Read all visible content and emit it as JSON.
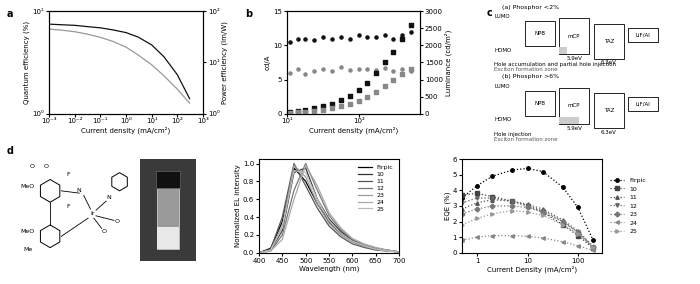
{
  "panel_labels": [
    "a",
    "b",
    "c",
    "d"
  ],
  "chart_data": [
    {
      "type": "line",
      "xlabel": "Current density (mA/cm²)",
      "ylabel": "Quantum efficiency (%)",
      "y2label": "Power efficiency (lm/W)",
      "log": true,
      "x": [
        0.001,
        0.003,
        0.01,
        0.03,
        0.1,
        0.3,
        1,
        3,
        10,
        30,
        100,
        300
      ],
      "series": [
        {
          "color": "#111111",
          "line_style": "solid",
          "values": [
            7.5,
            7.4,
            7.3,
            7.1,
            6.9,
            6.6,
            6.2,
            5.6,
            4.7,
            3.6,
            2.4,
            1.4
          ]
        },
        {
          "color": "#999999",
          "line_style": "solid",
          "axis": "y2",
          "values": [
            45,
            43,
            40,
            36,
            31,
            26,
            20,
            14,
            9,
            5.5,
            3,
            1.6
          ]
        }
      ],
      "xlim": [
        0.001,
        1000
      ],
      "xticks": [
        {
          "value": 0.001,
          "label": "10⁻³"
        },
        {
          "value": 0.01,
          "label": "10⁻²"
        },
        {
          "value": 0.1,
          "label": "10⁻¹"
        },
        {
          "value": 1,
          "label": "10⁰"
        },
        {
          "value": 10,
          "label": "10¹"
        },
        {
          "value": 100,
          "label": "10²"
        },
        {
          "value": 1000,
          "label": "10³"
        }
      ],
      "ylim": [
        1,
        10
      ],
      "yticks": [
        {
          "value": 1,
          "label": "10⁰"
        },
        {
          "value": 10,
          "label": "10¹"
        }
      ],
      "y2lim": [
        1,
        100
      ],
      "y2ticks": [
        {
          "value": 1,
          "label": "10⁰"
        },
        {
          "value": 10,
          "label": "10¹"
        },
        {
          "value": 100,
          "label": "10²"
        }
      ]
    },
    {
      "type": "scatter",
      "xlabel": "Current density (mA/cm²)",
      "ylabel": "cd/A",
      "y2label": "Luminance (cd/m²)",
      "log": "x",
      "x": [
        11,
        14,
        18,
        24,
        32,
        42,
        56,
        75,
        100,
        130,
        170,
        230,
        300,
        400,
        520
      ],
      "series": [
        {
          "color": "#111111",
          "marker": "circle",
          "values": [
            10.5,
            11,
            11,
            10.8,
            11.2,
            11,
            11.3,
            11,
            11.5,
            11.2,
            11.3,
            11.5,
            11,
            11.6,
            12
          ]
        },
        {
          "color": "#888888",
          "marker": "circle",
          "values": [
            6,
            6.5,
            5.8,
            6.2,
            6.5,
            6.3,
            6.8,
            6.4,
            6.6,
            6.5,
            6.4,
            6.7,
            6.2,
            6.5,
            6.3
          ]
        },
        {
          "color": "#111111",
          "marker": "square",
          "axis": "y2",
          "values": [
            60,
            80,
            110,
            160,
            220,
            290,
            400,
            520,
            700,
            900,
            1200,
            1500,
            1800,
            2200,
            2600
          ]
        },
        {
          "color": "#888888",
          "marker": "square",
          "axis": "y2",
          "values": [
            30,
            40,
            60,
            80,
            110,
            150,
            210,
            280,
            380,
            480,
            620,
            800,
            1000,
            1150,
            1300
          ]
        }
      ],
      "xlim": [
        10,
        700
      ],
      "xticks": [
        {
          "value": 10,
          "label": "10¹"
        },
        {
          "value": 100,
          "label": "10²"
        }
      ],
      "ylim": [
        0,
        15
      ],
      "yticks": [
        0,
        5,
        10,
        15
      ],
      "y2lim": [
        0,
        3000
      ],
      "y2ticks": [
        0,
        500,
        1000,
        1500,
        2000,
        2500,
        3000
      ]
    },
    {
      "type": "line",
      "xlabel": "Wavelength (nm)",
      "ylabel": "Normalized EL intensity",
      "legend": "upper right",
      "x": [
        400,
        425,
        450,
        475,
        500,
        525,
        550,
        575,
        600,
        625,
        650,
        675,
        700
      ],
      "series": [
        {
          "name": "Firpic",
          "color": "#000000",
          "values": [
            0,
            0.05,
            0.35,
            0.95,
            0.8,
            0.55,
            0.35,
            0.22,
            0.13,
            0.07,
            0.04,
            0.02,
            0.01
          ]
        },
        {
          "name": "10",
          "color": "#333333",
          "values": [
            0,
            0.03,
            0.25,
            0.9,
            0.95,
            0.6,
            0.38,
            0.24,
            0.14,
            0.08,
            0.05,
            0.03,
            0.01
          ]
        },
        {
          "name": "11",
          "color": "#555555",
          "values": [
            0,
            0.04,
            0.4,
            1.0,
            0.75,
            0.5,
            0.3,
            0.18,
            0.1,
            0.06,
            0.03,
            0.02,
            0.01
          ]
        },
        {
          "name": "12",
          "color": "#777777",
          "values": [
            0,
            0.02,
            0.2,
            0.7,
            1.0,
            0.7,
            0.42,
            0.26,
            0.15,
            0.09,
            0.05,
            0.03,
            0.01
          ]
        },
        {
          "name": "23",
          "color": "#999999",
          "values": [
            0,
            0.03,
            0.3,
            0.98,
            0.85,
            0.55,
            0.33,
            0.2,
            0.12,
            0.07,
            0.04,
            0.02,
            0.01
          ]
        },
        {
          "name": "24",
          "color": "#aaaaaa",
          "values": [
            0,
            0.02,
            0.15,
            0.6,
            0.98,
            0.75,
            0.45,
            0.28,
            0.16,
            0.1,
            0.06,
            0.03,
            0.01
          ]
        },
        {
          "name": "25",
          "color": "#bbbbbb",
          "values": [
            0,
            0.03,
            0.28,
            0.92,
            0.9,
            0.6,
            0.36,
            0.22,
            0.13,
            0.08,
            0.04,
            0.02,
            0.01
          ]
        }
      ],
      "xlim": [
        400,
        700
      ],
      "xticks": [
        400,
        450,
        500,
        550,
        600,
        650,
        700
      ],
      "ylim": [
        0,
        1.05
      ],
      "yticks": [
        {
          "value": 0,
          "label": "0.0"
        },
        0.2,
        0.4,
        0.6,
        0.8,
        {
          "value": 1,
          "label": "1.0"
        }
      ]
    },
    {
      "type": "line",
      "xlabel": "Current Density (mA/cm²)",
      "ylabel": "EQE (%)",
      "legend": "center left",
      "log": "x",
      "line_style": "dotted",
      "x": [
        0.5,
        1,
        2,
        5,
        10,
        20,
        50,
        100,
        200
      ],
      "series": [
        {
          "name": "Firpic",
          "color": "#000000",
          "marker": "circle",
          "values": [
            3.5,
            4.3,
            4.9,
            5.3,
            5.4,
            5.2,
            4.2,
            2.9,
            0.8
          ]
        },
        {
          "name": "10",
          "color": "#444444",
          "marker": "square",
          "values": [
            3.7,
            3.8,
            3.6,
            3.3,
            3.0,
            2.6,
            1.8,
            1.1,
            0.3
          ]
        },
        {
          "name": "11",
          "color": "#555555",
          "marker": "triangle_up",
          "values": [
            2.8,
            3.2,
            3.4,
            3.3,
            3.1,
            2.8,
            2.1,
            1.4,
            0.4
          ]
        },
        {
          "name": "12",
          "color": "#666666",
          "marker": "triangle_down",
          "values": [
            3.2,
            3.5,
            3.5,
            3.3,
            3.0,
            2.7,
            2.0,
            1.3,
            0.35
          ]
        },
        {
          "name": "23",
          "color": "#777777",
          "marker": "diamond",
          "values": [
            2.5,
            2.8,
            3.0,
            3.0,
            2.9,
            2.6,
            2.0,
            1.3,
            0.4
          ]
        },
        {
          "name": "24",
          "color": "#888888",
          "marker": "triangle_left",
          "values": [
            0.8,
            1.0,
            1.1,
            1.1,
            1.05,
            0.95,
            0.7,
            0.45,
            0.15
          ]
        },
        {
          "name": "25",
          "color": "#999999",
          "marker": "triangle_right",
          "values": [
            1.8,
            2.2,
            2.5,
            2.7,
            2.6,
            2.4,
            1.8,
            1.2,
            0.35
          ]
        }
      ],
      "xlim": [
        0.5,
        300
      ],
      "xticks": [
        1,
        10,
        100
      ],
      "ylim": [
        0,
        6
      ],
      "yticks": [
        0,
        1,
        2,
        3,
        4,
        5,
        6
      ]
    }
  ],
  "diagram": {
    "schemes": [
      {
        "title": "(a) Phosphor <2%",
        "lumo": "LUMO",
        "homo": "HOMO",
        "layers": [
          "NPB",
          "mCP",
          "TAZ",
          "LiF/Al"
        ],
        "energies": [
          "5.9eV",
          "6.3eV"
        ],
        "notes": [
          "Hole accumulation and partial hole injection",
          "Exciton formation zone"
        ]
      },
      {
        "title": "(b) Phosphor >6%",
        "lumo": "LUMO",
        "homo": "HOMO",
        "layers": [
          "NPB",
          "mCP",
          "TAZ",
          "LiF/Al"
        ],
        "energies": [
          "5.9eV",
          "6.3eV"
        ],
        "notes": [
          "Hole injection",
          "Exciton formation zone"
        ]
      }
    ]
  },
  "structure": {
    "atoms": [
      "O",
      "O",
      "MeO",
      "F",
      "F",
      "N",
      "Ir",
      "N",
      "O",
      "O",
      "MeO",
      "Me"
    ]
  }
}
